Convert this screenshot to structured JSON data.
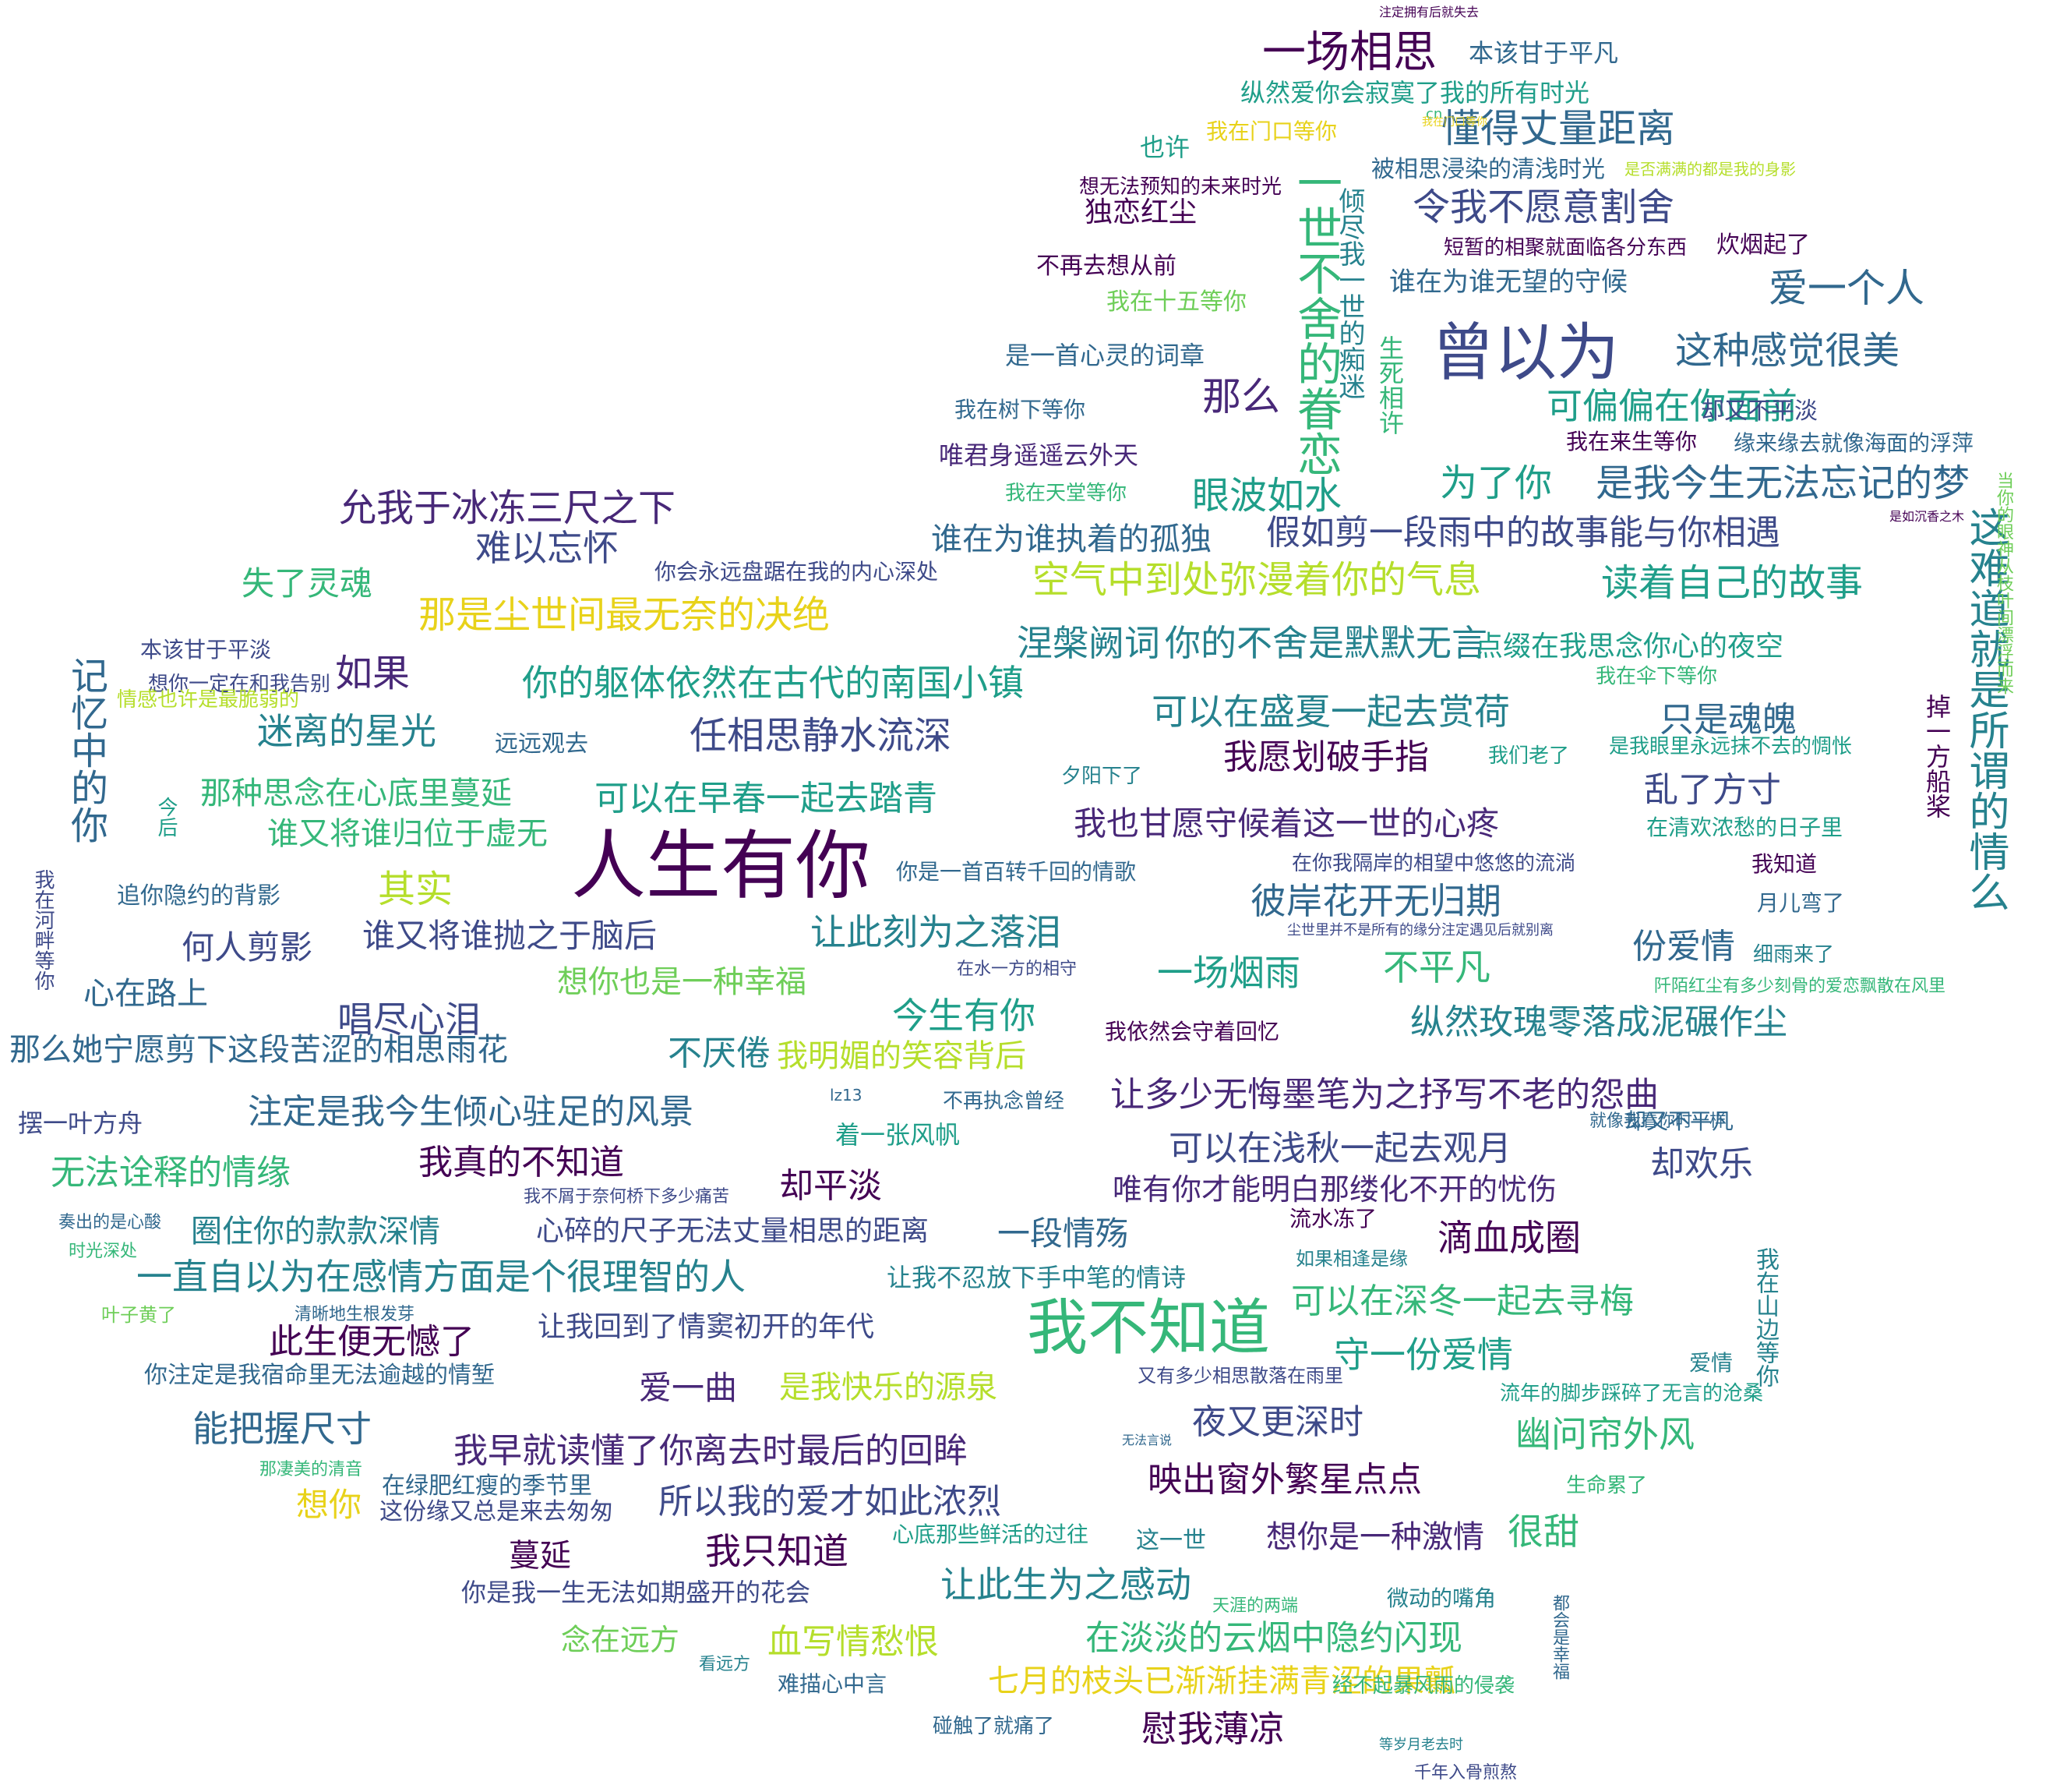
{
  "colors": {
    "purple_dark": "#440154",
    "purple": "#482878",
    "indigo": "#3e4a89",
    "blue": "#31688e",
    "teal": "#26828e",
    "teal_green": "#1f9e89",
    "green": "#35b779",
    "lime": "#6ece58",
    "yellow_green": "#b5de2b",
    "yellow": "#e8d21a"
  },
  "words": [
    "人生有你",
    "曾以为",
    "我不知道",
    "一世不舍的眷恋",
    "这难道就是所谓的情么",
    "一场相思",
    "懂得丈量距离",
    "令我不愿意割舍",
    "爱一个人",
    "这种感觉很美",
    "可偏偏在你面前",
    "是我今生无法忘记的梦",
    "为了你",
    "那么",
    "眼波如水",
    "允我于冰冻三尺之下",
    "难以忘怀",
    "假如剪一段雨中的故事能与你相遇",
    "谁在为谁执着的孤独",
    "空气中到处弥漫着你的气息",
    "读着自己的故事",
    "那是尘世间最无奈的决绝",
    "失了灵魂",
    "涅槃阙词",
    "你的不舍是默默无言",
    "点缀在我思念你心的夜空",
    "如果",
    "你的躯体依然在古代的南国小镇",
    "可以在盛夏一起去赏荷",
    "只是魂魄",
    "迷离的星光",
    "任相思静水流深",
    "我愿划破手指",
    "乱了方寸",
    "记忆中的你",
    "可以在早春一起去踏青",
    "我也甘愿守候着这一世的心疼",
    "那种思念在心底里蔓延",
    "谁又将谁归位于虚无",
    "其实",
    "彼岸花开无归期",
    "份爱情",
    "让此刻为之落泪",
    "谁又将谁抛之于脑后",
    "何人剪影",
    "想你也是一种幸福",
    "一场烟雨",
    "不平凡",
    "唱尽心泪",
    "心在路上",
    "纵然玫瑰零落成泥碾作尘",
    "今生有你",
    "那么她宁愿剪下这段苦涩的相思雨花",
    "不厌倦",
    "我明媚的笑容背后",
    "让多少无悔墨笔为之抒写不老的怨曲",
    "注定是我今生倾心驻足的风景",
    "我真的不知道",
    "可以在浅秋一起去观月",
    "无法诠释的情缘",
    "却欢乐",
    "却平淡",
    "唯有你才能明白那缕化不开的忧伤",
    "滴血成圈",
    "圈住你的款款深情",
    "心碎的尺子无法丈量相思的距离",
    "一段情殇",
    "一直自以为在感情方面是个很理智的人",
    "让我不忍放下手中笔的情诗",
    "可以在深冬一起去寻梅",
    "此生便无憾了",
    "让我回到了情窦初开的年代",
    "守一份爱情",
    "爱一曲",
    "是我快乐的源泉",
    "能把握尺寸",
    "夜又更深时",
    "幽问帘外风",
    "我早就读懂了你离去时最后的回眸",
    "映出窗外繁星点点",
    "所以我的爱才如此浓烈",
    "想你",
    "想你是一种激情",
    "很甜",
    "我只知道",
    "蔓延",
    "让此生为之感动",
    "在淡淡的云烟中隐约闪现",
    "血写情愁恨",
    "七月的枝头已渐渐挂满青涩的果瓤",
    "念在远方",
    "慰我薄凉",
    "纵然爱你会寂寞了我的所有时光",
    "本该甘于平凡",
    "被相思浸染的清浅时光",
    "是否满满的都是我的身影",
    "想无法预知的未来时光",
    "独恋红尘",
    "也许",
    "我在门口等你",
    "短暂的相聚就面临各分东西",
    "炊烟起了",
    "谁在为谁无望的守候",
    "不再去想从前",
    "我在十五等你",
    "是一首心灵的词章",
    "倾尽我一世的痴迷",
    "生死相许",
    "我在树下等你",
    "却又不平淡",
    "我在来生等你",
    "缘来缘去就像海面的浮萍",
    "唯君身遥遥云外天",
    "我在天堂等你",
    "你会永远盘踞在我的内心深处",
    "本该甘于平淡",
    "想你一定在和我告别",
    "情感也许是最脆弱的",
    "远远观去",
    "我在伞下等你",
    "是我眼里永远抹不去的惆怅",
    "我们老了",
    "夕阳下了",
    "掉一方船桨",
    "今后",
    "追你隐约的背影",
    "你是一首百转千回的情歌",
    "在清欢浓愁的日子里",
    "我知道",
    "在你我隔岸的相望中悠悠的流淌",
    "月儿弯了",
    "我在河畔等你",
    "细雨来了",
    "尘世里并不是所有的缘分注定遇见后就别离",
    "阡陌红尘有多少刻骨的爱恋飘散在风里",
    "在水一方的相守",
    "我依然会守着回忆",
    "不再执念曾经",
    "着一张风帆",
    "摆一叶方舟",
    "我在山边等你",
    "爱情",
    "流年的脚步踩碎了无言的沧桑",
    "就像我看你时一样",
    "却又不平凡",
    "流水冻了",
    "如果相逢是缘",
    "生命累了",
    "这一世",
    "微动的嘴角",
    "天涯的两端",
    "经不起暴风雨的侵袭",
    "千年入骨煎熬",
    "等岁月老去时",
    "难描心中言",
    "碰触了就痛了",
    "看远方",
    "都会是幸福",
    "心底那些鲜活的过往",
    "这份缘又总是来去匆匆",
    "在绿肥红瘦的季节里",
    "你是我一生无法如期盛开的花会",
    "你注定是我宿命里无法逾越的情堑",
    "叶子黄了",
    "时光深处",
    "奏出的是心酸",
    "我不屑于奈何桥下多少痛苦",
    "清晰地生根发芽",
    "那凄美的清音",
    "又有多少相思散落在雨里",
    "无法言说",
    "是如沉香之木",
    "当你的眼神从枝叶间漂浮而来",
    "cn",
    "lz13",
    "我在门口等你",
    "注定拥有后就失去"
  ]
}
